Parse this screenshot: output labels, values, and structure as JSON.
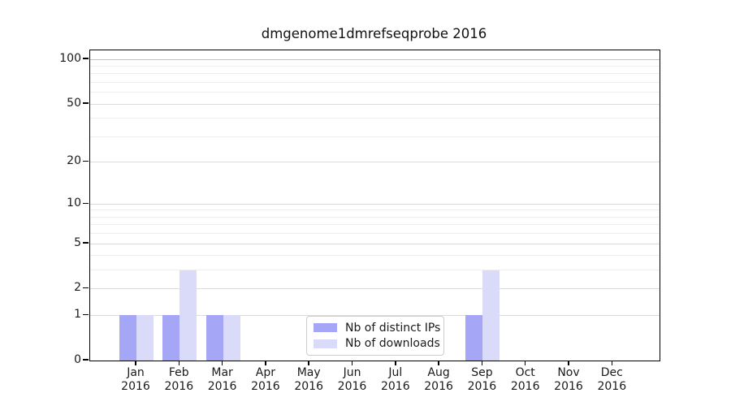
{
  "chart_data": {
    "type": "bar",
    "title": "dmgenome1dmrefseqprobe 2016",
    "categories": [
      "Jan 2016",
      "Feb 2016",
      "Mar 2016",
      "Apr 2016",
      "May 2016",
      "Jun 2016",
      "Jul 2016",
      "Aug 2016",
      "Sep 2016",
      "Oct 2016",
      "Nov 2016",
      "Dec 2016"
    ],
    "series": [
      {
        "name": "Nb of distinct IPs",
        "color": "#a5a7f6",
        "values": [
          1,
          1,
          1,
          0,
          0,
          0,
          0,
          0,
          1,
          0,
          0,
          0
        ]
      },
      {
        "name": "Nb of downloads",
        "color": "#d9dbf9",
        "values": [
          1,
          3,
          1,
          0,
          0,
          0,
          0,
          0,
          3,
          0,
          0,
          0
        ]
      }
    ],
    "xlabel": "",
    "ylabel": "",
    "yaxis": {
      "scale": "log1p",
      "tick_labels": [
        "0",
        "1",
        "2",
        "5",
        "10",
        "20",
        "50",
        "100"
      ],
      "tick_values": [
        0,
        1,
        2,
        5,
        10,
        20,
        50,
        100
      ],
      "minor_gridline_values": [
        3,
        4,
        6,
        7,
        8,
        9,
        30,
        40,
        60,
        70,
        80,
        90
      ],
      "ylim": [
        0,
        115
      ]
    },
    "grid": true,
    "legend_position": "inside-bottom-center"
  },
  "colors": {
    "grid_major": "#dcdcdc",
    "grid_minor": "#eeeeee",
    "grid_top": "#c2c2c2",
    "spine": "#000000",
    "legend_border": "#cccccc"
  }
}
